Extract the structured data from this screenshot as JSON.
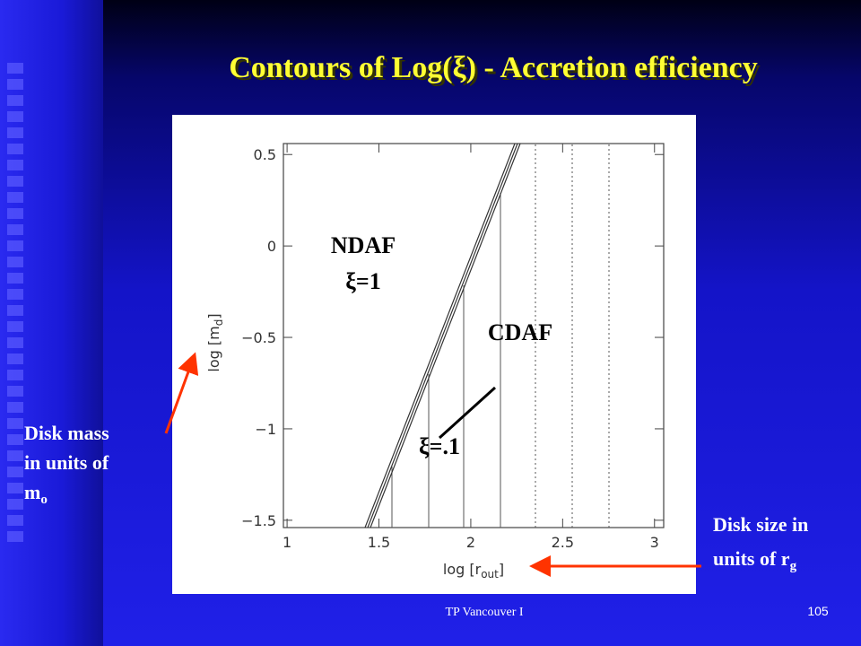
{
  "title": "Contours of Log(ξ)  - Accretion efficiency",
  "plot": {
    "xlabel": {
      "text": "log [r",
      "sub": "out",
      "end": "]"
    },
    "ylabel": {
      "text": "log [m",
      "sub": "d",
      "end": "]"
    },
    "xlim": [
      0.98,
      3.05
    ],
    "ylim": [
      -1.54,
      0.56
    ],
    "xticks": [
      1,
      1.5,
      2,
      2.5,
      3
    ],
    "yticks": [
      0.5,
      0,
      {
        "value": -0.5,
        "label": "−0.5"
      },
      {
        "value": -1,
        "label": "−1"
      },
      {
        "value": -1.5,
        "label": "−1.5"
      }
    ],
    "regions": [
      "NDAF",
      "ξ=1",
      "CDAF",
      "ξ=.1"
    ]
  },
  "annotations": {
    "mass": {
      "lines": [
        "Disk mass",
        "in units of"
      ],
      "symbol": "m",
      "sub": "o"
    },
    "size": {
      "lines": [
        "Disk size in"
      ],
      "text": "units of r",
      "sub": "g"
    }
  },
  "footer": {
    "text": "TP Vancouver I",
    "page": "105"
  }
}
